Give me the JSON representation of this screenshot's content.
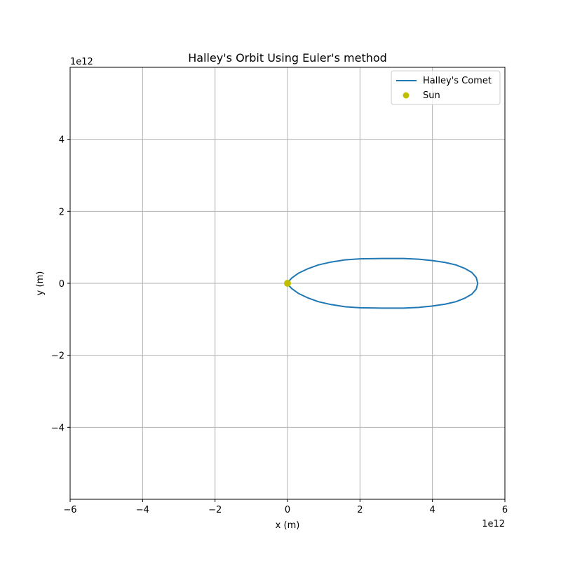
{
  "chart_data": {
    "type": "line",
    "title": "Halley's Orbit Using Euler's method",
    "xlabel": "x (m)",
    "ylabel": "y (m)",
    "x_offset_label": "1e12",
    "y_offset_label": "1e12",
    "xlim": [
      -6,
      6
    ],
    "ylim": [
      -6,
      6
    ],
    "xticks": [
      -6,
      -4,
      -2,
      0,
      2,
      4,
      6
    ],
    "yticks": [
      -4,
      -2,
      0,
      2,
      4
    ],
    "xtick_labels": [
      "−6",
      "−4",
      "−2",
      "0",
      "2",
      "4",
      "6"
    ],
    "ytick_labels": [
      "−4",
      "−2",
      "0",
      "2",
      "4"
    ],
    "grid": true,
    "legend_position": "top-right",
    "series": [
      {
        "name": "Halley's Comet",
        "kind": "line",
        "color": "#1f77b4",
        "points": [
          [
            5.25,
            0.0
          ],
          [
            5.21,
            0.16
          ],
          [
            5.09,
            0.3
          ],
          [
            4.9,
            0.41
          ],
          [
            4.65,
            0.51
          ],
          [
            4.35,
            0.58
          ],
          [
            4.0,
            0.63
          ],
          [
            3.62,
            0.67
          ],
          [
            3.2,
            0.69
          ],
          [
            2.6,
            0.69
          ],
          [
            2.0,
            0.68
          ],
          [
            1.58,
            0.65
          ],
          [
            1.2,
            0.59
          ],
          [
            0.85,
            0.51
          ],
          [
            0.55,
            0.4
          ],
          [
            0.3,
            0.28
          ],
          [
            0.12,
            0.15
          ],
          [
            0.0,
            0.02
          ],
          [
            0.0,
            -0.02
          ],
          [
            0.12,
            -0.15
          ],
          [
            0.3,
            -0.28
          ],
          [
            0.55,
            -0.4
          ],
          [
            0.85,
            -0.51
          ],
          [
            1.2,
            -0.59
          ],
          [
            1.58,
            -0.65
          ],
          [
            2.0,
            -0.68
          ],
          [
            2.6,
            -0.69
          ],
          [
            3.2,
            -0.69
          ],
          [
            3.62,
            -0.67
          ],
          [
            4.0,
            -0.63
          ],
          [
            4.35,
            -0.58
          ],
          [
            4.65,
            -0.51
          ],
          [
            4.9,
            -0.41
          ],
          [
            5.09,
            -0.3
          ],
          [
            5.21,
            -0.16
          ],
          [
            5.25,
            0.0
          ]
        ]
      },
      {
        "name": "Sun",
        "kind": "scatter",
        "color": "#bfbf00",
        "points": [
          [
            0,
            0
          ]
        ]
      }
    ]
  }
}
